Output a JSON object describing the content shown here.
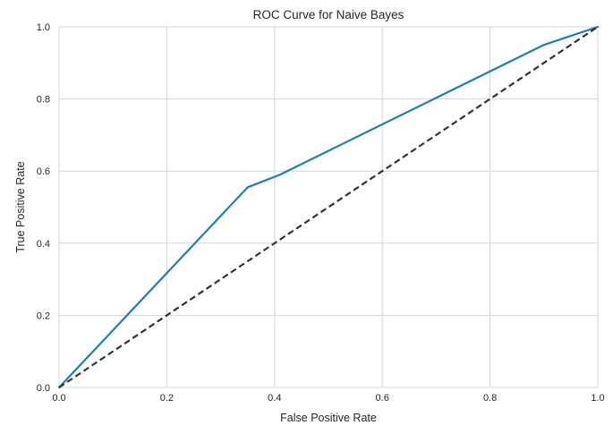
{
  "chart_data": {
    "type": "line",
    "title": "ROC Curve for Naive Bayes",
    "xlabel": "False Positive Rate",
    "ylabel": "True Positive Rate",
    "xlim": [
      0.0,
      1.0
    ],
    "ylim": [
      0.0,
      1.0
    ],
    "xticks": [
      "0.0",
      "0.2",
      "0.4",
      "0.6",
      "0.8",
      "1.0"
    ],
    "yticks": [
      "0.0",
      "0.2",
      "0.4",
      "0.6",
      "0.8",
      "1.0"
    ],
    "grid": true,
    "legend": "none",
    "series": [
      {
        "color": "#1f7fad",
        "style": "solid",
        "x": [
          0.0,
          0.35,
          0.41,
          0.9,
          1.0
        ],
        "y": [
          0.0,
          0.555,
          0.59,
          0.95,
          1.0
        ]
      },
      {
        "color": "#333333",
        "style": "dashed",
        "x": [
          0.0,
          1.0
        ],
        "y": [
          0.0,
          1.0
        ]
      }
    ]
  }
}
